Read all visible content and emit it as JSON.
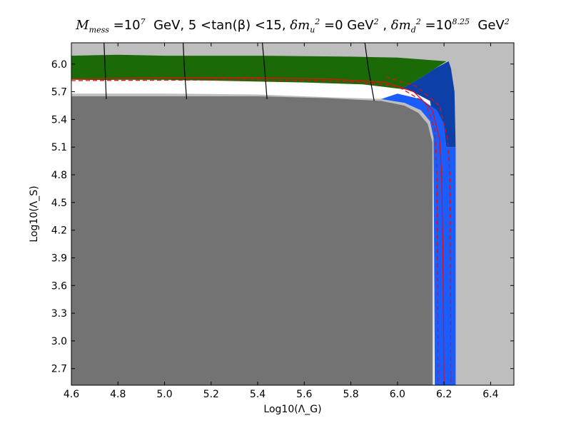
{
  "chart_data": {
    "type": "heatmap",
    "title": "M_mess = 10^7 GeV, 5 < tan(β) < 15, δm_u^2 = 0 GeV^2, δm_d^2 = 10^8.25 GeV^2",
    "title_parts": {
      "mmess": "M",
      "mmess_sub": "mess",
      "eq1": " =10",
      "exp1": "7",
      "gev1": "  GeV, ",
      "tanb": "5 <tan(β) <15, ",
      "dmu": "δm",
      "dmu_sub": "u",
      "dmu_sup": "2",
      "eq2": " =0 GeV",
      "sq2": "2",
      "comma": " , ",
      "dmd": "δm",
      "dmd_sub": "d",
      "dmd_sup": "2",
      "eq3": " =10",
      "exp3": "8.25",
      "gev3": "  GeV",
      "sq3": "2"
    },
    "xlabel": "Log10(Λ_G)",
    "ylabel": "Log10(Λ_S)",
    "xlim": [
      4.6,
      6.5
    ],
    "ylim": [
      2.52,
      6.23
    ],
    "x_ticks": [
      "4.6",
      "4.8",
      "5.0",
      "5.2",
      "5.4",
      "5.6",
      "5.8",
      "6.0",
      "6.2",
      "6.4"
    ],
    "y_ticks": [
      "2.7",
      "3.0",
      "3.3",
      "3.6",
      "3.9",
      "4.2",
      "4.5",
      "4.8",
      "5.1",
      "5.4",
      "5.7",
      "6.0"
    ],
    "grid": false,
    "regions": [
      {
        "name": "excluded-light",
        "color": "#bebebe",
        "polygon": [
          [
            4.6,
            2.52
          ],
          [
            6.5,
            2.52
          ],
          [
            6.5,
            6.23
          ],
          [
            4.6,
            6.23
          ]
        ]
      },
      {
        "name": "green",
        "color": "#1a6a08",
        "polygon": [
          [
            4.6,
            5.82
          ],
          [
            4.8,
            5.83
          ],
          [
            5.0,
            5.83
          ],
          [
            5.2,
            5.82
          ],
          [
            5.4,
            5.8
          ],
          [
            5.6,
            5.78
          ],
          [
            5.75,
            5.76
          ],
          [
            5.9,
            5.72
          ],
          [
            5.98,
            5.7
          ],
          [
            6.04,
            5.76
          ],
          [
            6.1,
            5.85
          ],
          [
            6.16,
            5.95
          ],
          [
            6.21,
            6.03
          ],
          [
            6.0,
            6.07
          ],
          [
            5.8,
            6.08
          ],
          [
            5.4,
            6.09
          ],
          [
            5.0,
            6.09
          ],
          [
            4.8,
            6.1
          ],
          [
            4.6,
            6.09
          ]
        ]
      },
      {
        "name": "dark-blue",
        "color": "#0d3fa8",
        "polygon": [
          [
            5.95,
            5.66
          ],
          [
            6.0,
            5.67
          ],
          [
            6.1,
            5.6
          ],
          [
            6.17,
            5.48
          ],
          [
            6.2,
            5.3
          ],
          [
            6.21,
            5.1
          ],
          [
            6.25,
            5.1
          ],
          [
            6.245,
            5.7
          ],
          [
            6.23,
            5.95
          ],
          [
            6.22,
            6.03
          ],
          [
            6.16,
            5.95
          ],
          [
            6.1,
            5.85
          ],
          [
            6.04,
            5.76
          ],
          [
            5.98,
            5.7
          ]
        ]
      },
      {
        "name": "white-band",
        "color": "#ffffff",
        "polygon": [
          [
            4.6,
            5.68
          ],
          [
            5.0,
            5.68
          ],
          [
            5.4,
            5.67
          ],
          [
            5.7,
            5.64
          ],
          [
            5.95,
            5.62
          ],
          [
            6.05,
            5.6
          ],
          [
            6.1,
            5.52
          ],
          [
            6.14,
            5.4
          ],
          [
            6.155,
            5.2
          ],
          [
            6.155,
            2.52
          ],
          [
            6.16,
            2.52
          ],
          [
            6.16,
            5.3
          ],
          [
            6.14,
            5.6
          ],
          [
            6.05,
            5.72
          ],
          [
            5.85,
            5.78
          ],
          [
            5.6,
            5.8
          ],
          [
            5.2,
            5.82
          ],
          [
            4.6,
            5.83
          ]
        ]
      },
      {
        "name": "bright-blue",
        "color": "#1a5dff",
        "polygon": [
          [
            6.16,
            2.52
          ],
          [
            6.25,
            2.52
          ],
          [
            6.25,
            5.1
          ],
          [
            6.21,
            5.1
          ],
          [
            6.2,
            5.35
          ],
          [
            6.17,
            5.5
          ],
          [
            6.1,
            5.62
          ],
          [
            6.0,
            5.68
          ],
          [
            5.93,
            5.62
          ],
          [
            6.03,
            5.58
          ],
          [
            6.1,
            5.5
          ],
          [
            6.14,
            5.38
          ],
          [
            6.155,
            5.2
          ]
        ]
      },
      {
        "name": "dark-grey",
        "color": "#737373",
        "polygon": [
          [
            4.6,
            2.52
          ],
          [
            6.15,
            2.52
          ],
          [
            6.15,
            5.15
          ],
          [
            6.13,
            5.35
          ],
          [
            6.09,
            5.47
          ],
          [
            6.03,
            5.55
          ],
          [
            5.93,
            5.6
          ],
          [
            5.7,
            5.63
          ],
          [
            5.4,
            5.65
          ],
          [
            5.0,
            5.65
          ],
          [
            4.6,
            5.65
          ]
        ]
      }
    ],
    "black_contours": [
      [
        [
          4.74,
          6.23
        ],
        [
          4.745,
          5.95
        ],
        [
          4.75,
          5.62
        ]
      ],
      [
        [
          5.08,
          6.23
        ],
        [
          5.085,
          5.95
        ],
        [
          5.095,
          5.62
        ]
      ],
      [
        [
          5.42,
          6.23
        ],
        [
          5.43,
          5.95
        ],
        [
          5.44,
          5.62
        ]
      ],
      [
        [
          5.86,
          6.23
        ],
        [
          5.875,
          5.95
        ],
        [
          5.9,
          5.6
        ]
      ]
    ],
    "red_solid": [
      [
        4.6,
        5.84
      ],
      [
        5.0,
        5.85
      ],
      [
        5.4,
        5.85
      ],
      [
        5.7,
        5.84
      ],
      [
        5.95,
        5.8
      ],
      [
        6.07,
        5.7
      ],
      [
        6.15,
        5.5
      ],
      [
        6.18,
        5.2
      ],
      [
        6.19,
        4.8
      ],
      [
        6.195,
        4.0
      ],
      [
        6.2,
        2.52
      ]
    ],
    "red_dashed": [
      [
        [
          4.6,
          5.82
        ],
        [
          5.4,
          5.83
        ],
        [
          5.8,
          5.81
        ],
        [
          6.0,
          5.76
        ],
        [
          6.12,
          5.58
        ],
        [
          6.16,
          5.3
        ],
        [
          6.17,
          4.8
        ],
        [
          6.175,
          2.52
        ]
      ],
      [
        [
          5.95,
          5.86
        ],
        [
          6.08,
          5.76
        ],
        [
          6.18,
          5.55
        ],
        [
          6.215,
          5.2
        ],
        [
          6.225,
          4.8
        ],
        [
          6.23,
          2.52
        ]
      ]
    ]
  }
}
